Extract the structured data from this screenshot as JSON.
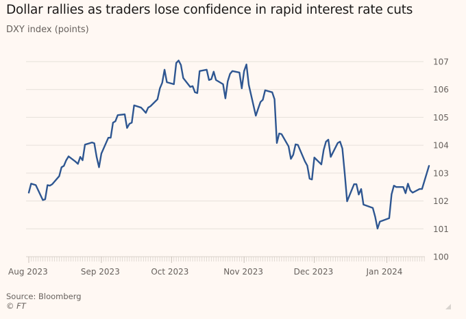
{
  "header": {
    "title": "Dollar rallies as traders lose confidence in rapid interest rate cuts",
    "subtitle": "DXY index (points)"
  },
  "footer": {
    "source": "Source: Bloomberg",
    "copyright": "© FT"
  },
  "colors": {
    "background": "#fff8f3",
    "line": "#2e5691",
    "grid": "#e6e0da",
    "text": "#66605c"
  },
  "chart_data": {
    "type": "line",
    "title": "Dollar rallies as traders lose confidence in rapid interest rate cuts",
    "subtitle": "DXY index (points)",
    "xlabel": "",
    "ylabel": "DXY index (points)",
    "ylim": [
      100,
      107
    ],
    "y_ticks": [
      100,
      101,
      102,
      103,
      104,
      105,
      106,
      107
    ],
    "y_axis_side": "right",
    "x_range": [
      "2023-08-01",
      "2024-01-19"
    ],
    "x_ticks": [
      {
        "date": "2023-08-01",
        "label": "Aug 2023"
      },
      {
        "date": "2023-09-01",
        "label": "Sep 2023"
      },
      {
        "date": "2023-10-01",
        "label": "Oct 2023"
      },
      {
        "date": "2023-11-01",
        "label": "Nov 2023"
      },
      {
        "date": "2023-12-01",
        "label": "Dec 2023"
      },
      {
        "date": "2024-01-01",
        "label": "Jan 2024"
      }
    ],
    "grid": true,
    "legend": "none",
    "source": "Source: Bloomberg",
    "series": [
      {
        "name": "DXY index",
        "color": "#2e5691",
        "points": [
          [
            "2023-08-01",
            102.3
          ],
          [
            "2023-08-02",
            102.62
          ],
          [
            "2023-08-04",
            102.57
          ],
          [
            "2023-08-07",
            102.03
          ],
          [
            "2023-08-08",
            102.06
          ],
          [
            "2023-08-09",
            102.57
          ],
          [
            "2023-08-10",
            102.55
          ],
          [
            "2023-08-11",
            102.6
          ],
          [
            "2023-08-14",
            102.89
          ],
          [
            "2023-08-15",
            103.21
          ],
          [
            "2023-08-16",
            103.26
          ],
          [
            "2023-08-17",
            103.46
          ],
          [
            "2023-08-18",
            103.6
          ],
          [
            "2023-08-21",
            103.41
          ],
          [
            "2023-08-22",
            103.33
          ],
          [
            "2023-08-23",
            103.58
          ],
          [
            "2023-08-24",
            103.46
          ],
          [
            "2023-08-25",
            104.02
          ],
          [
            "2023-08-28",
            104.1
          ],
          [
            "2023-08-29",
            104.07
          ],
          [
            "2023-08-30",
            103.58
          ],
          [
            "2023-08-31",
            103.21
          ],
          [
            "2023-09-01",
            103.7
          ],
          [
            "2023-09-04",
            104.27
          ],
          [
            "2023-09-05",
            104.27
          ],
          [
            "2023-09-06",
            104.81
          ],
          [
            "2023-09-07",
            104.86
          ],
          [
            "2023-09-08",
            105.08
          ],
          [
            "2023-09-11",
            105.11
          ],
          [
            "2023-09-12",
            104.62
          ],
          [
            "2023-09-13",
            104.77
          ],
          [
            "2023-09-14",
            104.81
          ],
          [
            "2023-09-15",
            105.43
          ],
          [
            "2023-09-18",
            105.35
          ],
          [
            "2023-09-19",
            105.26
          ],
          [
            "2023-09-20",
            105.16
          ],
          [
            "2023-09-21",
            105.35
          ],
          [
            "2023-09-22",
            105.4
          ],
          [
            "2023-09-25",
            105.65
          ],
          [
            "2023-09-26",
            106.04
          ],
          [
            "2023-09-27",
            106.24
          ],
          [
            "2023-09-28",
            106.71
          ],
          [
            "2023-09-29",
            106.26
          ],
          [
            "2023-10-02",
            106.19
          ],
          [
            "2023-10-03",
            106.95
          ],
          [
            "2023-10-04",
            107.04
          ],
          [
            "2023-10-05",
            106.88
          ],
          [
            "2023-10-06",
            106.41
          ],
          [
            "2023-10-09",
            106.09
          ],
          [
            "2023-10-10",
            106.12
          ],
          [
            "2023-10-11",
            105.9
          ],
          [
            "2023-10-12",
            105.87
          ],
          [
            "2023-10-13",
            106.66
          ],
          [
            "2023-10-16",
            106.71
          ],
          [
            "2023-10-17",
            106.34
          ],
          [
            "2023-10-18",
            106.37
          ],
          [
            "2023-10-19",
            106.64
          ],
          [
            "2023-10-20",
            106.34
          ],
          [
            "2023-10-23",
            106.19
          ],
          [
            "2023-10-24",
            105.68
          ],
          [
            "2023-10-25",
            106.29
          ],
          [
            "2023-10-26",
            106.56
          ],
          [
            "2023-10-27",
            106.66
          ],
          [
            "2023-10-30",
            106.61
          ],
          [
            "2023-10-31",
            106.04
          ],
          [
            "2023-11-01",
            106.66
          ],
          [
            "2023-11-02",
            106.9
          ],
          [
            "2023-11-03",
            106.17
          ],
          [
            "2023-11-06",
            105.06
          ],
          [
            "2023-11-07",
            105.31
          ],
          [
            "2023-11-08",
            105.55
          ],
          [
            "2023-11-09",
            105.63
          ],
          [
            "2023-11-10",
            105.97
          ],
          [
            "2023-11-13",
            105.9
          ],
          [
            "2023-11-14",
            105.65
          ],
          [
            "2023-11-15",
            104.08
          ],
          [
            "2023-11-16",
            104.42
          ],
          [
            "2023-11-17",
            104.4
          ],
          [
            "2023-11-20",
            103.96
          ],
          [
            "2023-11-21",
            103.51
          ],
          [
            "2023-11-22",
            103.66
          ],
          [
            "2023-11-23",
            104.03
          ],
          [
            "2023-11-24",
            104.01
          ],
          [
            "2023-11-27",
            103.42
          ],
          [
            "2023-11-28",
            103.27
          ],
          [
            "2023-11-29",
            102.8
          ],
          [
            "2023-11-30",
            102.77
          ],
          [
            "2023-12-01",
            103.56
          ],
          [
            "2023-12-04",
            103.31
          ],
          [
            "2023-12-05",
            103.83
          ],
          [
            "2023-12-06",
            104.13
          ],
          [
            "2023-12-07",
            104.2
          ],
          [
            "2023-12-08",
            103.58
          ],
          [
            "2023-12-11",
            104.08
          ],
          [
            "2023-12-12",
            104.13
          ],
          [
            "2023-12-13",
            103.88
          ],
          [
            "2023-12-14",
            102.97
          ],
          [
            "2023-12-15",
            101.99
          ],
          [
            "2023-12-18",
            102.6
          ],
          [
            "2023-12-19",
            102.6
          ],
          [
            "2023-12-20",
            102.23
          ],
          [
            "2023-12-21",
            102.43
          ],
          [
            "2023-12-22",
            101.87
          ],
          [
            "2023-12-26",
            101.75
          ],
          [
            "2023-12-27",
            101.43
          ],
          [
            "2023-12-28",
            101.01
          ],
          [
            "2023-12-29",
            101.26
          ],
          [
            "2024-01-02",
            101.38
          ],
          [
            "2024-01-03",
            102.24
          ],
          [
            "2024-01-04",
            102.55
          ],
          [
            "2024-01-05",
            102.5
          ],
          [
            "2024-01-08",
            102.5
          ],
          [
            "2024-01-09",
            102.28
          ],
          [
            "2024-01-10",
            102.62
          ],
          [
            "2024-01-11",
            102.38
          ],
          [
            "2024-01-12",
            102.3
          ],
          [
            "2024-01-15",
            102.43
          ],
          [
            "2024-01-16",
            102.43
          ],
          [
            "2024-01-19",
            103.26
          ]
        ]
      }
    ]
  }
}
